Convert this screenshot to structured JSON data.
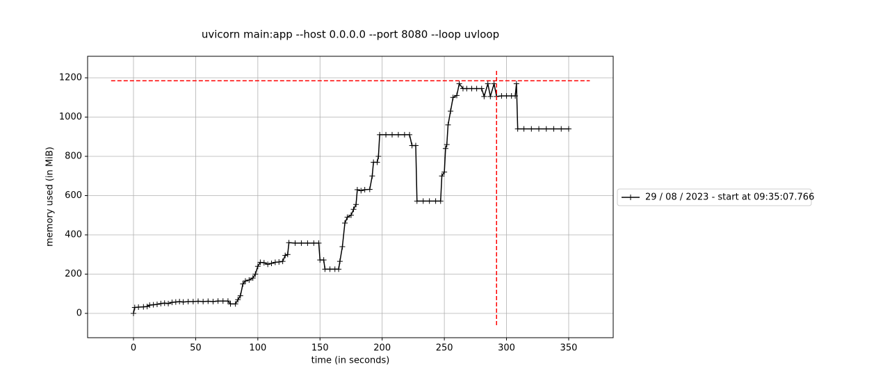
{
  "chart_data": {
    "type": "line",
    "title": "uvicorn main:app --host 0.0.0.0 --port 8080 --loop uvloop",
    "x_label": "time (in seconds)",
    "y_label": "memory used (in MiB)",
    "x": [
      0,
      1,
      4,
      8,
      11,
      13,
      16,
      19,
      22,
      25,
      28,
      31,
      34,
      37,
      40,
      44,
      48,
      52,
      56,
      60,
      64,
      68,
      72,
      76,
      78,
      82,
      84,
      86,
      88,
      90,
      93,
      96,
      98,
      100,
      102,
      105,
      108,
      111,
      114,
      117,
      120,
      122,
      124,
      125,
      130,
      135,
      140,
      145,
      149,
      150,
      153,
      154,
      158,
      162,
      165,
      166,
      168,
      170,
      172,
      175,
      177,
      179,
      180,
      183,
      186,
      190,
      192,
      193,
      196,
      197,
      198,
      203,
      208,
      213,
      218,
      222,
      224,
      227,
      228,
      233,
      238,
      243,
      247,
      248,
      250,
      251,
      252,
      253,
      255,
      257,
      260,
      262,
      265,
      268,
      272,
      276,
      280,
      282,
      285,
      287,
      290,
      292,
      296,
      300,
      304,
      307,
      308,
      309,
      314,
      320,
      326,
      332,
      338,
      344,
      350
    ],
    "series": [
      {
        "name": "29 / 08 / 2023 - start at 09:35:07.766",
        "color": "#000000",
        "values": [
          0,
          30,
          32,
          33,
          35,
          42,
          44,
          46,
          50,
          52,
          50,
          56,
          58,
          60,
          58,
          60,
          60,
          62,
          60,
          62,
          60,
          63,
          63,
          63,
          48,
          48,
          70,
          90,
          150,
          165,
          170,
          180,
          200,
          240,
          260,
          258,
          250,
          255,
          260,
          262,
          265,
          295,
          300,
          360,
          358,
          358,
          358,
          358,
          358,
          272,
          272,
          225,
          225,
          225,
          225,
          265,
          340,
          460,
          490,
          500,
          530,
          555,
          630,
          625,
          630,
          632,
          700,
          770,
          770,
          800,
          910,
          910,
          910,
          910,
          910,
          910,
          855,
          855,
          572,
          572,
          572,
          572,
          572,
          700,
          720,
          840,
          860,
          960,
          1030,
          1100,
          1110,
          1170,
          1145,
          1145,
          1145,
          1145,
          1145,
          1105,
          1170,
          1105,
          1170,
          1105,
          1108,
          1108,
          1108,
          1108,
          1170,
          940,
          940,
          940,
          940,
          940,
          940,
          940,
          940
        ]
      }
    ],
    "max_hline": {
      "y": 1185,
      "xmin": -18,
      "xmax": 367,
      "color": "#ff0000"
    },
    "max_vline": {
      "x": 292,
      "ymin": -60,
      "ymax": 1245,
      "color": "#ff0000"
    },
    "xlim": [
      -36.9,
      385.8
    ],
    "ylim": [
      -123.9,
      1309.7
    ],
    "xticks": [
      0,
      50,
      100,
      150,
      200,
      250,
      300,
      350
    ],
    "yticks": [
      0,
      200,
      400,
      600,
      800,
      1000,
      1200
    ],
    "grid": true,
    "legend": "outside-right"
  }
}
